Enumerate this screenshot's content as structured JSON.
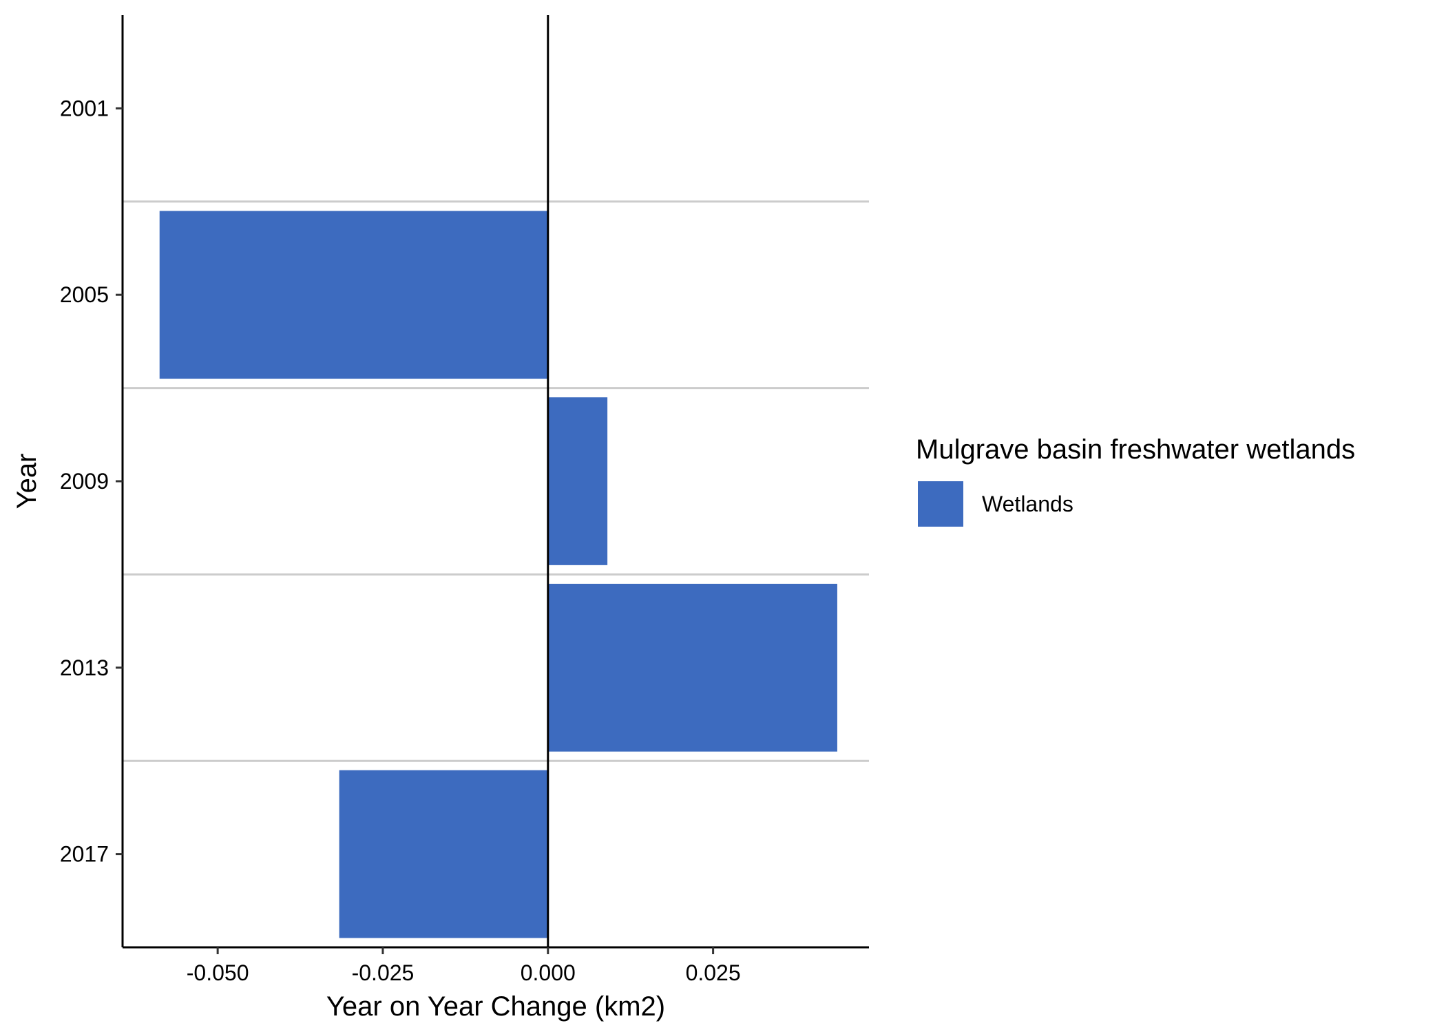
{
  "chart_data": {
    "type": "bar",
    "orientation": "horizontal",
    "categories": [
      "2001",
      "2005",
      "2009",
      "2013",
      "2017"
    ],
    "series": [
      {
        "name": "Wetlands",
        "values": [
          0,
          -0.0588,
          0.009,
          0.0438,
          -0.0316
        ],
        "color": "#3d6bbf"
      }
    ],
    "xlabel": "Year on Year Change (km2)",
    "ylabel": "Year",
    "xlim": [
      -0.0644,
      0.0486
    ],
    "xticks": [
      -0.05,
      -0.025,
      0.0,
      0.025
    ],
    "xtick_labels": [
      "-0.050",
      "-0.025",
      "0.000",
      "0.025"
    ],
    "zero_line": true,
    "grid": "horizontal separators between categories",
    "legend": {
      "title": "Mulgrave basin freshwater wetlands",
      "position": "right",
      "entries": [
        "Wetlands"
      ]
    }
  }
}
